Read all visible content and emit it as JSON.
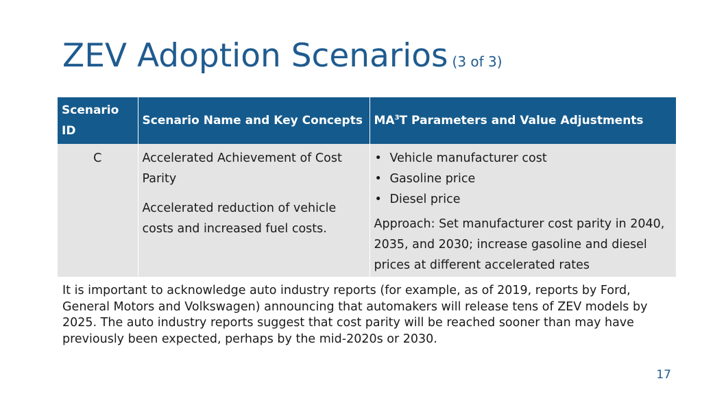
{
  "slide": {
    "title": "ZEV Adoption Scenarios",
    "title_suffix": "(3 of 3)",
    "page_number": "17"
  },
  "table": {
    "headers": {
      "scenario_id": "Scenario ID",
      "name_concepts": "Scenario Name and Key Concepts",
      "params_prefix": "MA",
      "params_sup": "3",
      "params_suffix": "T Parameters and Value Adjustments"
    },
    "rows": [
      {
        "id": "C",
        "name": "Accelerated Achievement of Cost Parity",
        "description": "Accelerated reduction of vehicle costs and increased fuel costs.",
        "parameters": [
          "Vehicle manufacturer cost",
          "Gasoline price",
          "Diesel price"
        ],
        "approach": "Approach: Set manufacturer cost parity in 2040, 2035, and 2030; increase gasoline and diesel prices at different accelerated rates"
      }
    ]
  },
  "note": "It is important to acknowledge auto industry reports (for example, as of 2019, reports by Ford, General Motors and Volkswagen) announcing that automakers will release tens of ZEV models by 2025. The auto industry reports suggest that cost parity will be reached sooner than may have previously been expected, perhaps by the mid-2020s or 2030.",
  "colors": {
    "title": "#1f5b8f",
    "header_bg": "#155a8c",
    "cell_bg": "#e4e4e4"
  }
}
